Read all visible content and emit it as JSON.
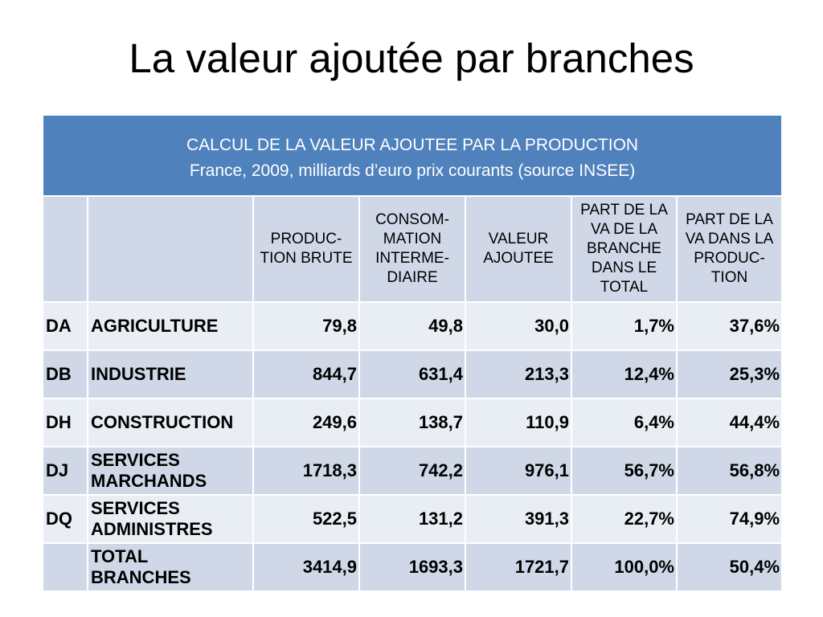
{
  "slide": {
    "title": "La valeur ajoutée par branches"
  },
  "table": {
    "caption": {
      "line1": "CALCUL DE LA VALEUR AJOUTEE PAR LA PRODUCTION",
      "line2": "France, 2009, milliards d’euro prix courants (source INSEE)"
    },
    "headers": {
      "production": "PRODUC-\nTION BRUTE",
      "consumption": "CONSOM-\nMATION\nINTERME-\nDIAIRE",
      "value_added": "VALEUR\nAJOUTEE",
      "share_total": "PART DE LA\nVA DE LA\nBRANCHE\nDANS LE\nTOTAL",
      "share_production": "PART DE LA\nVA DANS LA\nPRODUC-\nTION"
    },
    "rows": [
      {
        "code": "DA",
        "branch": "AGRICULTURE",
        "production": "79,8",
        "consumption": "49,8",
        "value_added": "30,0",
        "share_total": "1,7%",
        "share_production": "37,6%"
      },
      {
        "code": "DB",
        "branch": "INDUSTRIE",
        "production": "844,7",
        "consumption": "631,4",
        "value_added": "213,3",
        "share_total": "12,4%",
        "share_production": "25,3%"
      },
      {
        "code": "DH",
        "branch": "CONSTRUCTION",
        "production": "249,6",
        "consumption": "138,7",
        "value_added": "110,9",
        "share_total": "6,4%",
        "share_production": "44,4%"
      },
      {
        "code": "DJ",
        "branch": "SERVICES\nMARCHANDS",
        "production": "1718,3",
        "consumption": "742,2",
        "value_added": "976,1",
        "share_total": "56,7%",
        "share_production": "56,8%"
      },
      {
        "code": "DQ",
        "branch": "SERVICES\nADMINISTRES",
        "production": "522,5",
        "consumption": "131,2",
        "value_added": "391,3",
        "share_total": "22,7%",
        "share_production": "74,9%"
      },
      {
        "branch": "TOTAL\nBRANCHES",
        "production": "3414,9",
        "consumption": "1693,3",
        "value_added": "1721,7",
        "share_total": "100,0%",
        "share_production": "50,4%"
      }
    ]
  },
  "colors": {
    "header_blue": "#4F81BD",
    "band_dark": "#D0D8E8",
    "band_light": "#E9EDF4",
    "caption_text": "#FFFFFF"
  }
}
